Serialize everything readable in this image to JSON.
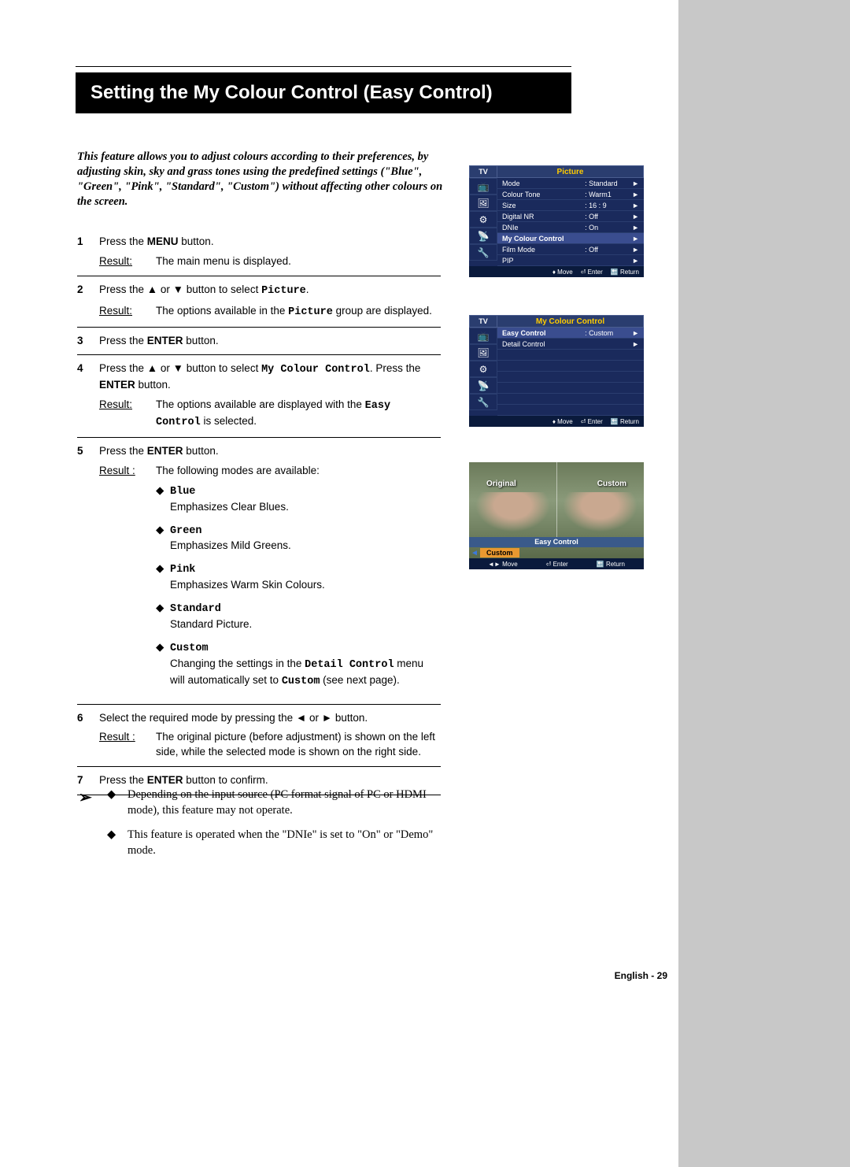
{
  "title": "Setting the My Colour Control (Easy Control)",
  "intro": "This feature allows you to adjust colours according to their preferences, by adjusting skin, sky and grass tones using the predefined settings (\"Blue\", \"Green\", \"Pink\", \"Standard\", \"Custom\") without affecting other colours on the screen.",
  "result_label": "Result:",
  "result_label_sp": "Result :",
  "steps": {
    "s1": {
      "n": "1",
      "text_a": "Press the ",
      "text_b": "MENU",
      "text_c": " button.",
      "res": "The main menu is displayed."
    },
    "s2": {
      "n": "2",
      "text_a": "Press the ▲ or ▼ button to select ",
      "text_b": "Picture",
      "text_c": ".",
      "res_a": "The options available in the ",
      "res_b": "Picture",
      "res_c": " group are displayed."
    },
    "s3": {
      "n": "3",
      "text_a": "Press the ",
      "text_b": "ENTER",
      "text_c": " button."
    },
    "s4": {
      "n": "4",
      "text_a": "Press the ▲ or ▼ button to select ",
      "text_b": "My Colour Control",
      "text_c": ". Press the ",
      "text_d": "ENTER",
      "text_e": " button.",
      "res_a": "The options available are displayed with the ",
      "res_b": "Easy Control",
      "res_c": " is selected."
    },
    "s5": {
      "n": "5",
      "text_a": "Press the ",
      "text_b": "ENTER",
      "text_c": " button.",
      "res": "The following modes are available:",
      "modes": {
        "blue": {
          "name": "Blue",
          "desc": "Emphasizes Clear Blues."
        },
        "green": {
          "name": "Green",
          "desc": "Emphasizes Mild Greens."
        },
        "pink": {
          "name": "Pink",
          "desc": "Emphasizes Warm Skin Colours."
        },
        "standard": {
          "name": "Standard",
          "desc": "Standard Picture."
        },
        "custom": {
          "name": "Custom",
          "desc_a": "Changing the settings in the ",
          "desc_b": "Detail Control",
          "desc_c": " menu will automatically set to ",
          "desc_d": "Custom",
          "desc_e": " (see next page)."
        }
      }
    },
    "s6": {
      "n": "6",
      "text": "Select the required mode by pressing the ◄ or ► button.",
      "res": "The original picture (before adjustment) is shown on the left side, while the selected mode is shown on the right side."
    },
    "s7": {
      "n": "7",
      "text_a": "Press the ",
      "text_b": "ENTER",
      "text_c": " button to confirm."
    }
  },
  "notes": {
    "n1": "Depending on the input source (PC format signal of PC or HDMI mode), this feature may not operate.",
    "n2": "This feature is operated when the \"DNIe\" is set to \"On\" or \"Demo\" mode."
  },
  "osd1": {
    "tv": "TV",
    "title": "Picture",
    "rows": {
      "mode": {
        "l": "Mode",
        "v": ": Standard"
      },
      "ct": {
        "l": "Colour Tone",
        "v": ": Warm1"
      },
      "size": {
        "l": "Size",
        "v": ": 16 : 9"
      },
      "dnr": {
        "l": "Digital NR",
        "v": ": Off"
      },
      "dnie": {
        "l": "DNIe",
        "v": ": On"
      },
      "mcc": {
        "l": "My Colour Control",
        "v": ""
      },
      "film": {
        "l": "Film Mode",
        "v": ": Off"
      },
      "pip": {
        "l": "PIP",
        "v": ""
      }
    },
    "footer": {
      "move": "Move",
      "enter": "Enter",
      "return": "Return"
    }
  },
  "osd2": {
    "tv": "TV",
    "title": "My Colour Control",
    "rows": {
      "ec": {
        "l": "Easy Control",
        "v": ": Custom"
      },
      "dc": {
        "l": "Detail Control",
        "v": ""
      }
    },
    "footer": {
      "move": "Move",
      "enter": "Enter",
      "return": "Return"
    }
  },
  "osd3": {
    "original": "Original",
    "custom": "Custom",
    "ec_label": "Easy Control",
    "sel": "Custom",
    "footer": {
      "move": "Move",
      "enter": "Enter",
      "return": "Return"
    }
  },
  "icons": {
    "i1": "📺",
    "i2": "🖼",
    "i3": "⚙",
    "i4": "📡",
    "i5": "🔧"
  },
  "colors": {
    "osd_bg": "#1a2a5c",
    "osd_title": "#ffcc00",
    "orange": "#e89830",
    "highlight": "#3a4d8f"
  },
  "page_num": "English - 29",
  "diamond": "◆",
  "arrow_r": "►",
  "arrow_note": "➢",
  "updown": "♦",
  "enter_sym": "⏎",
  "return_sym": "🔙",
  "lr_sym": "◄►"
}
